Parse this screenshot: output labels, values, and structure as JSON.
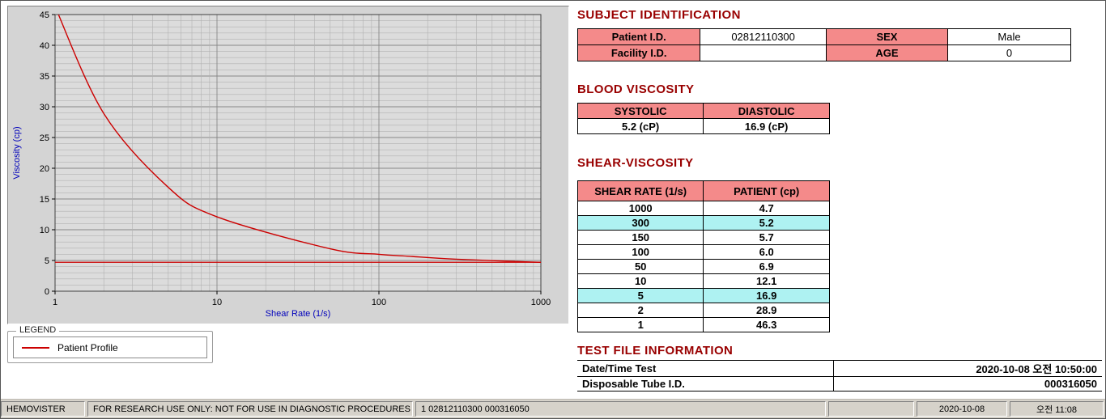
{
  "colors": {
    "accent": "#990000",
    "table_header_bg": "#f48a8a",
    "row_highlight_bg": "#aef2f2",
    "curve": "#cc0000",
    "axis_label": "#0000bb"
  },
  "chart_data": {
    "type": "line",
    "title": "",
    "xlabel": "Shear Rate (1/s)",
    "ylabel": "Viscosity (cp)",
    "x_scale": "log",
    "xlim": [
      1,
      1000
    ],
    "ylim": [
      0,
      45
    ],
    "xticks": [
      1,
      10,
      100,
      1000
    ],
    "yticks": [
      0,
      5,
      10,
      15,
      20,
      25,
      30,
      35,
      40,
      45
    ],
    "grid": true,
    "legend_position": "below-left",
    "series": [
      {
        "name": "Patient Profile",
        "x": [
          1,
          2,
          5,
          10,
          50,
          100,
          150,
          300,
          1000
        ],
        "values": [
          46.3,
          28.9,
          16.9,
          12.1,
          6.9,
          6.0,
          5.7,
          5.2,
          4.7
        ],
        "color": "#cc0000"
      }
    ],
    "reference_line": {
      "y": 4.7,
      "color": "#cc0000"
    }
  },
  "legend": {
    "title": "LEGEND",
    "entry": "Patient Profile"
  },
  "subject": {
    "title": "SUBJECT IDENTIFICATION",
    "fields": [
      [
        "Patient I.D.",
        "02812110300",
        "SEX",
        "Male"
      ],
      [
        "Facility I.D.",
        "",
        "AGE",
        "0"
      ]
    ]
  },
  "blood_viscosity": {
    "title": "BLOOD VISCOSITY",
    "headers": [
      "SYSTOLIC",
      "DIASTOLIC"
    ],
    "values": [
      "5.2 (cP)",
      "16.9 (cP)"
    ]
  },
  "shear_viscosity": {
    "title": "SHEAR-VISCOSITY",
    "headers": [
      "SHEAR RATE (1/s)",
      "PATIENT (cp)"
    ],
    "rows": [
      {
        "rate": "1000",
        "value": "4.7",
        "highlight": false
      },
      {
        "rate": "300",
        "value": "5.2",
        "highlight": true
      },
      {
        "rate": "150",
        "value": "5.7",
        "highlight": false
      },
      {
        "rate": "100",
        "value": "6.0",
        "highlight": false
      },
      {
        "rate": "50",
        "value": "6.9",
        "highlight": false
      },
      {
        "rate": "10",
        "value": "12.1",
        "highlight": false
      },
      {
        "rate": "5",
        "value": "16.9",
        "highlight": true
      },
      {
        "rate": "2",
        "value": "28.9",
        "highlight": false
      },
      {
        "rate": "1",
        "value": "46.3",
        "highlight": false
      }
    ]
  },
  "test_file": {
    "title": "TEST FILE INFORMATION",
    "rows": [
      {
        "label": "Date/Time Test",
        "value": "2020-10-08   오전 10:50:00"
      },
      {
        "label": "Disposable Tube I.D.",
        "value": "000316050"
      }
    ]
  },
  "status_bar": {
    "app": "HEMOVISTER",
    "notice": "FOR RESEARCH USE ONLY: NOT FOR USE IN DIAGNOSTIC PROCEDURES",
    "file_info": "1  02812110300  000316050",
    "blank": "",
    "date": "2020-10-08",
    "time": "오전 11:08"
  }
}
